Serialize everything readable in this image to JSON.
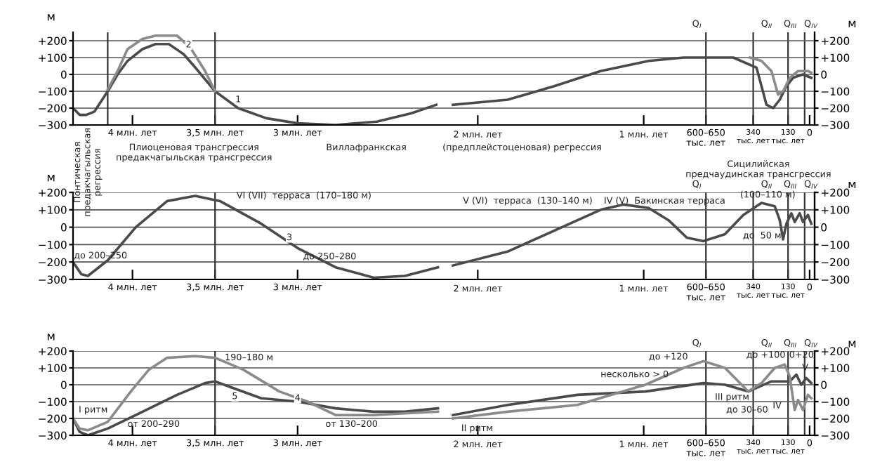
{
  "chart_data": [
    {
      "type": "line",
      "xlim": [
        4.36,
        2.14
      ],
      "ylim": [
        -300,
        250
      ],
      "ylabel": "м",
      "grid": "y",
      "line_style": "solid",
      "xticks": [
        {
          "value": 4.0,
          "label": "4 млн. лет"
        },
        {
          "value": 3.5,
          "label": "3,5 млн. лет"
        },
        {
          "value": 3.0,
          "label": "3 млн. лет"
        }
      ],
      "yticks": [
        {
          "value": 200,
          "label": "+200"
        },
        {
          "value": 100,
          "label": "+100"
        },
        0,
        {
          "value": -100,
          "label": "−100"
        },
        {
          "value": -200,
          "label": "−200"
        },
        {
          "value": -300,
          "label": "−300"
        }
      ],
      "series": [
        {
          "color": "#4a4a4a",
          "x": [
            4.36,
            4.32,
            4.28,
            4.23,
            4.15,
            4.09,
            4.03,
            3.94,
            3.86,
            3.78,
            3.69,
            3.61,
            3.5,
            3.36,
            3.19,
            3.0,
            2.77,
            2.52,
            2.31,
            2.16
          ],
          "values": [
            -200,
            -240,
            -240,
            -220,
            -100,
            0,
            80,
            150,
            180,
            180,
            120,
            30,
            -100,
            -200,
            -260,
            -290,
            -300,
            -280,
            -230,
            -180
          ]
        },
        {
          "color": "#8a8a8a",
          "x": [
            4.15,
            4.09,
            4.03,
            3.94,
            3.86,
            3.73,
            3.65,
            3.56,
            3.5
          ],
          "values": [
            -90,
            20,
            150,
            210,
            230,
            230,
            160,
            20,
            -100
          ]
        }
      ],
      "ref_lines": [
        {
          "axis": "x",
          "value": 4.15
        },
        {
          "axis": "x",
          "value": 3.5
        }
      ],
      "annotations": [
        {
          "text": "1",
          "x": 3.36,
          "y": -150
        },
        {
          "text": "2",
          "x": 3.66,
          "y": 175
        },
        "Понтическая\nпредакчагыльская\nрегрессия",
        "Плиоценовая трансгрессия\nпредакчагыльская трансгрессия",
        "Виллафранкская"
      ]
    },
    {
      "type": "line",
      "xlim": [
        2230,
        -30
      ],
      "y2lim": [
        -300,
        250
      ],
      "y2label": "м",
      "grid": "y",
      "line_style": "solid",
      "xticks": [
        {
          "value": 2000,
          "label": null
        },
        {
          "value": 1000,
          "label": null
        },
        {
          "value": 625,
          "label": "600–650\nтыс. лет"
        },
        {
          "value": 340,
          "label": "340\nтыс. лет"
        },
        {
          "value": 130,
          "label": "130\nтыс. лет"
        },
        0
      ],
      "y2ticks": [
        {
          "value": 200,
          "label": "+200"
        },
        {
          "value": 100,
          "label": "+100"
        },
        0,
        {
          "value": -100,
          "label": "−100"
        },
        {
          "value": -200,
          "label": "−200"
        },
        {
          "value": -300,
          "label": "−300"
        }
      ],
      "series": [
        {
          "color": "#4a4a4a",
          "axis": "y2",
          "x": [
            2150,
            1820,
            1540,
            1260,
            970,
            760,
            460,
            320,
            290,
            260,
            220,
            180,
            140,
            100,
            40,
            -10
          ],
          "values": [
            -180,
            -150,
            -70,
            20,
            80,
            100,
            100,
            40,
            -70,
            -180,
            -200,
            -150,
            -70,
            -20,
            0,
            -20
          ]
        },
        {
          "color": "#8a8a8a",
          "axis": "y2",
          "x": [
            360,
            290,
            230,
            190,
            160,
            120,
            70,
            10,
            -10
          ],
          "values": [
            100,
            80,
            20,
            -120,
            -100,
            -20,
            20,
            20,
            10
          ]
        }
      ],
      "ref_lines": [
        {
          "axis": "x",
          "value": 625
        },
        {
          "axis": "x",
          "value": 340
        },
        {
          "axis": "x",
          "value": 130
        },
        {
          "axis": "x",
          "value": 30
        }
      ],
      "annotations": [
        "Q$_{I}$",
        "Q$_{II}$",
        "Q$_{III}$",
        "Q$_{IV}$",
        "(предплейстоценовая) регрессия",
        "Сицилийская\nпредчаудинская трансгрессия",
        "2 млн. лет",
        "1 млн. лет"
      ]
    },
    {
      "type": "line",
      "xlim": [
        4.36,
        2.14
      ],
      "ylim": [
        -300,
        200
      ],
      "ylabel": "м",
      "grid": "y",
      "line_style": "solid",
      "xticks": [
        {
          "value": 4.0,
          "label": "4 млн. лет"
        },
        {
          "value": 3.5,
          "label": "3,5 млн. лет"
        },
        {
          "value": 3.0,
          "label": "3 млн. лет"
        }
      ],
      "yticks": [
        {
          "value": 200,
          "label": "+200"
        },
        {
          "value": 100,
          "label": "+100"
        },
        0,
        {
          "value": -100,
          "label": "−100"
        },
        {
          "value": -200,
          "label": "−200"
        },
        {
          "value": -300,
          "label": "−300"
        }
      ],
      "series": [
        {
          "color": "#4a4a4a",
          "x": [
            4.36,
            4.31,
            4.27,
            4.15,
            3.98,
            3.79,
            3.62,
            3.47,
            3.22,
            3.0,
            2.77,
            2.54,
            2.35,
            2.15
          ],
          "values": [
            -200,
            -270,
            -280,
            -190,
            0,
            150,
            180,
            150,
            20,
            -120,
            -230,
            -290,
            -280,
            -230
          ]
        }
      ],
      "ref_lines": [
        {
          "axis": "x",
          "value": 3.5
        }
      ],
      "annotations": [
        {
          "text": "3",
          "x": 3.05,
          "y": -60
        },
        "до 200–250",
        "VI (VII)  терраса  (170–180 м)",
        "до 250–280"
      ]
    },
    {
      "type": "line",
      "xlim": [
        2230,
        -30
      ],
      "y2lim": [
        -300,
        200
      ],
      "y2label": "м",
      "grid": "y",
      "line_style": "solid",
      "xticks": [
        {
          "value": 2000,
          "label": null
        },
        {
          "value": 1000,
          "label": null
        },
        {
          "value": 625,
          "label": "600–650\nтыс. лет"
        },
        {
          "value": 340,
          "label": "340\nтыс. лет"
        },
        {
          "value": 130,
          "label": "130\nтыс. лет"
        },
        0
      ],
      "y2ticks": [
        {
          "value": 200,
          "label": "+200"
        },
        {
          "value": 100,
          "label": "+100"
        },
        0,
        {
          "value": -100,
          "label": "−100"
        },
        {
          "value": -200,
          "label": "−200"
        },
        {
          "value": -300,
          "label": "−300"
        }
      ],
      "series": [
        {
          "color": "#4a4a4a",
          "axis": "y2",
          "x": [
            2150,
            1820,
            1540,
            1260,
            1120,
            970,
            850,
            740,
            640,
            510,
            400,
            290,
            210,
            180,
            160,
            140,
            110,
            90,
            60,
            40,
            10,
            -10
          ],
          "values": [
            -220,
            -140,
            -20,
            100,
            130,
            110,
            40,
            -60,
            -80,
            -40,
            70,
            140,
            120,
            40,
            -70,
            20,
            80,
            30,
            80,
            30,
            70,
            20
          ]
        }
      ],
      "ref_lines": [
        {
          "axis": "x",
          "value": 625
        },
        {
          "axis": "x",
          "value": 340
        },
        {
          "axis": "x",
          "value": 130
        },
        {
          "axis": "x",
          "value": 30
        }
      ],
      "annotations": [
        "Q$_{I}$",
        "Q$_{II}$",
        "Q$_{III}$",
        "Q$_{IV}$",
        "V (VI)  терраса  (130–140 м)",
        "IV (V)  Бакинская терраса",
        "(100–110 м)",
        "до  50 м",
        "2 млн. лет",
        "1 млн. лет"
      ]
    },
    {
      "type": "line",
      "xlim": [
        4.36,
        2.14
      ],
      "ylim": [
        -300,
        200
      ],
      "ylabel": "м",
      "grid": "y",
      "line_style": "solid",
      "xticks": [
        {
          "value": 4.0,
          "label": "4 млн. лет"
        },
        {
          "value": 3.5,
          "label": "3,5 млн. лет"
        },
        {
          "value": 3.0,
          "label": "3 млн. лет"
        }
      ],
      "yticks": [
        {
          "value": 200,
          "label": "+200"
        },
        {
          "value": 100,
          "label": "+100"
        },
        0,
        {
          "value": -100,
          "label": "−100"
        },
        {
          "value": -200,
          "label": "−200"
        },
        {
          "value": -300,
          "label": "−300"
        }
      ],
      "series": [
        {
          "color": "#4a4a4a",
          "x": [
            4.36,
            4.32,
            4.27,
            4.15,
            3.96,
            3.73,
            3.56,
            3.5,
            3.39,
            3.22,
            3.0,
            2.77,
            2.54,
            2.35,
            2.15
          ],
          "values": [
            -200,
            -280,
            -300,
            -260,
            -170,
            -60,
            10,
            20,
            -20,
            -80,
            -100,
            -140,
            -160,
            -160,
            -140
          ]
        },
        {
          "color": "#8a8a8a",
          "x": [
            4.36,
            4.32,
            4.27,
            4.15,
            4.01,
            3.9,
            3.79,
            3.62,
            3.5,
            3.33,
            3.11,
            2.94,
            2.77,
            2.54,
            2.35,
            2.15
          ],
          "values": [
            -200,
            -260,
            -270,
            -220,
            -40,
            90,
            160,
            170,
            160,
            90,
            -40,
            -100,
            -180,
            -180,
            -170,
            -160
          ]
        }
      ],
      "ref_lines": [
        {
          "axis": "x",
          "value": 3.5
        }
      ],
      "annotations": [
        {
          "text": "5",
          "x": 3.38,
          "y": -70
        },
        {
          "text": "4",
          "x": 3.0,
          "y": -80
        },
        "190–180 м",
        "I ритм",
        "от 200–290",
        "от 130–200"
      ]
    },
    {
      "type": "line",
      "xlim": [
        2230,
        -30
      ],
      "y2lim": [
        -300,
        200
      ],
      "y2label": "м",
      "grid": "y",
      "line_style": "solid",
      "xticks": [
        {
          "value": 2000,
          "label": null
        },
        {
          "value": 1000,
          "label": null
        },
        {
          "value": 625,
          "label": "600–650\nтыс. лет"
        },
        {
          "value": 340,
          "label": "340\nтыс. лет"
        },
        {
          "value": 130,
          "label": "130\nтыс. лет"
        },
        0
      ],
      "y2ticks": [
        {
          "value": 200,
          "label": "+200"
        },
        {
          "value": 100,
          "label": "+100"
        },
        0,
        {
          "value": -100,
          "label": "−100"
        },
        {
          "value": -200,
          "label": "−200"
        },
        {
          "value": -300,
          "label": "−300"
        }
      ],
      "series": [
        {
          "color": "#4a4a4a",
          "axis": "y2",
          "x": [
            2150,
            1820,
            1400,
            990,
            640,
            510,
            370,
            230,
            120,
            80,
            50,
            20,
            -10
          ],
          "values": [
            -180,
            -120,
            -60,
            -40,
            10,
            0,
            -40,
            20,
            20,
            60,
            0,
            40,
            10
          ]
        },
        {
          "color": "#8a8a8a",
          "axis": "y2",
          "x": [
            2150,
            1820,
            1400,
            990,
            760,
            640,
            510,
            370,
            290,
            210,
            150,
            120,
            90,
            70,
            40,
            10,
            -10
          ],
          "values": [
            -200,
            -160,
            -120,
            0,
            100,
            140,
            100,
            -40,
            10,
            100,
            120,
            50,
            -150,
            -90,
            -150,
            -60,
            -80
          ]
        }
      ],
      "ref_lines": [
        {
          "axis": "x",
          "value": 625
        },
        {
          "axis": "x",
          "value": 340
        },
        {
          "axis": "x",
          "value": 130
        },
        {
          "axis": "x",
          "value": 30
        }
      ],
      "annotations": [
        "Q$_{I}$",
        "Q$_{II}$",
        "Q$_{III}$",
        "Q$_{IV}$",
        "II ритм",
        "до +120",
        "несколько > 0",
        "III ритм",
        "до +100",
        "до 30–60",
        "0+20",
        "V",
        "IV",
        "2 млн. лет",
        "1 млн. лет"
      ]
    }
  ]
}
